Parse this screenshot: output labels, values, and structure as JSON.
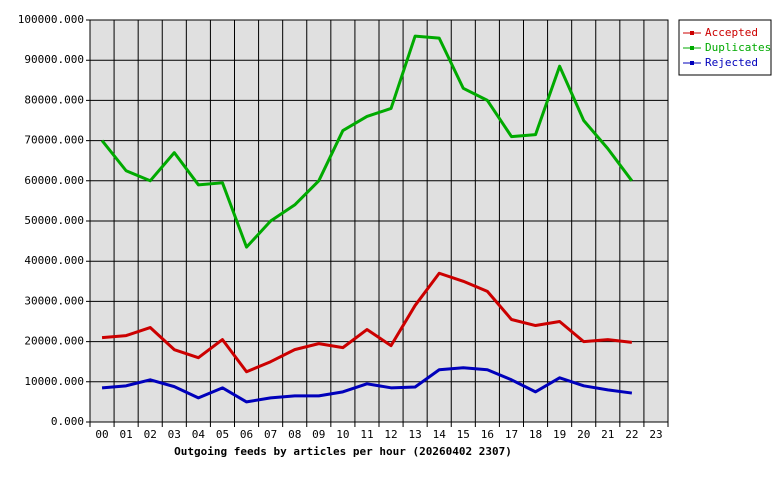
{
  "chart_data": {
    "type": "line",
    "x_label": "Outgoing feeds by articles per hour (20260402 2307)",
    "categories": [
      "00",
      "01",
      "02",
      "03",
      "04",
      "05",
      "06",
      "07",
      "08",
      "09",
      "10",
      "11",
      "12",
      "13",
      "14",
      "15",
      "16",
      "17",
      "18",
      "19",
      "20",
      "21",
      "22",
      "23"
    ],
    "series": [
      {
        "name": "Accepted",
        "color": "#cc0000",
        "values": [
          21000,
          21500,
          23500,
          18000,
          16000,
          20500,
          12500,
          15000,
          18000,
          19500,
          18500,
          23000,
          19000,
          29000,
          37000,
          35000,
          32500,
          25500,
          24000,
          25000,
          20000,
          20500,
          19800,
          null
        ]
      },
      {
        "name": "Duplicates",
        "color": "#00aa00",
        "values": [
          70000,
          62500,
          60000,
          67000,
          59000,
          59500,
          43500,
          50000,
          54000,
          60000,
          72500,
          76000,
          78000,
          96000,
          95500,
          83000,
          80000,
          71000,
          71500,
          88500,
          75000,
          68000,
          60000,
          null
        ]
      },
      {
        "name": "Rejected",
        "color": "#0000bb",
        "values": [
          8500,
          9000,
          10500,
          8800,
          6000,
          8500,
          5000,
          6000,
          6500,
          6500,
          7500,
          9500,
          8500,
          8700,
          13000,
          13500,
          13000,
          10500,
          7500,
          11000,
          9000,
          8000,
          7200,
          null
        ]
      }
    ],
    "ylim": [
      0,
      100000
    ],
    "yticks": [
      {
        "value": 0,
        "label": "0.000"
      },
      {
        "value": 10000,
        "label": "10000.000"
      },
      {
        "value": 20000,
        "label": "20000.000"
      },
      {
        "value": 30000,
        "label": "30000.000"
      },
      {
        "value": 40000,
        "label": "40000.000"
      },
      {
        "value": 50000,
        "label": "50000.000"
      },
      {
        "value": 60000,
        "label": "60000.000"
      },
      {
        "value": 70000,
        "label": "70000.000"
      },
      {
        "value": 80000,
        "label": "80000.000"
      },
      {
        "value": 90000,
        "label": "90000.000"
      },
      {
        "value": 100000,
        "label": "100000.000"
      }
    ],
    "grid": true,
    "legend": "right"
  }
}
